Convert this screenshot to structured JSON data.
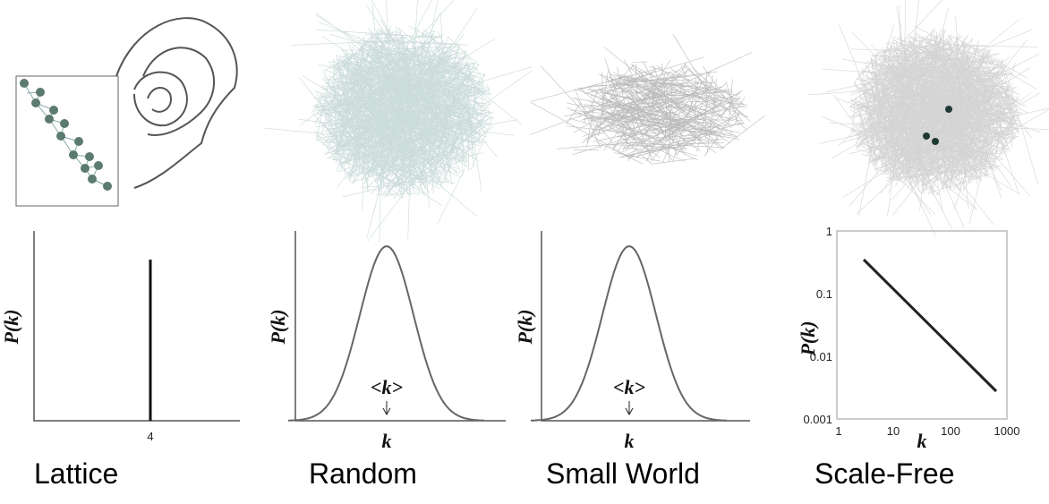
{
  "panels": [
    {
      "label": "Lattice",
      "y_label": "P(k)",
      "x_tick": "4"
    },
    {
      "label": "Random",
      "y_label": "P(k)",
      "x_label": "k",
      "mean_label": "<k>"
    },
    {
      "label": "Small World",
      "y_label": "P(k)",
      "x_label": "k",
      "mean_label": "<k>"
    },
    {
      "label": "Scale-Free",
      "y_label": "P(k)",
      "x_label": "k",
      "y_ticks": [
        "1",
        "0.1",
        "0.01",
        "0.001"
      ],
      "x_ticks": [
        "1",
        "10",
        "100",
        "1000"
      ]
    }
  ]
}
